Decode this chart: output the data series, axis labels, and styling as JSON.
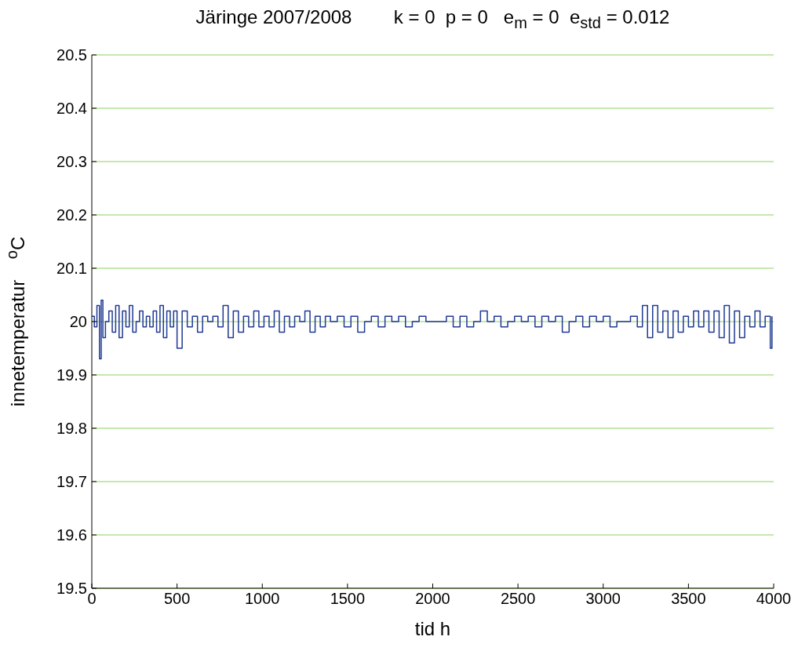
{
  "chart_data": {
    "type": "step",
    "title": "Järinge 2007/2008        k = 0  p = 0   e$_{m}$ = 0  e$_{std}$ = 0.012",
    "xlabel": "tid  h",
    "ylabel": "innetemperatur    $^{o}$C",
    "x": [
      0,
      15,
      30,
      45,
      55,
      65,
      80,
      100,
      120,
      140,
      160,
      180,
      200,
      220,
      240,
      260,
      280,
      300,
      320,
      340,
      360,
      380,
      400,
      420,
      440,
      460,
      480,
      500,
      530,
      560,
      590,
      620,
      650,
      680,
      710,
      740,
      770,
      800,
      830,
      860,
      890,
      920,
      950,
      980,
      1010,
      1040,
      1070,
      1100,
      1130,
      1160,
      1190,
      1220,
      1250,
      1280,
      1310,
      1340,
      1370,
      1400,
      1440,
      1480,
      1520,
      1560,
      1600,
      1640,
      1680,
      1720,
      1760,
      1800,
      1840,
      1880,
      1920,
      1960,
      2000,
      2040,
      2080,
      2120,
      2160,
      2200,
      2240,
      2280,
      2320,
      2360,
      2400,
      2440,
      2480,
      2520,
      2560,
      2600,
      2640,
      2680,
      2720,
      2760,
      2800,
      2840,
      2880,
      2920,
      2960,
      3000,
      3040,
      3080,
      3120,
      3160,
      3200,
      3230,
      3260,
      3290,
      3320,
      3350,
      3380,
      3410,
      3440,
      3470,
      3500,
      3530,
      3560,
      3590,
      3620,
      3650,
      3680,
      3710,
      3740,
      3770,
      3800,
      3830,
      3860,
      3890,
      3920,
      3950,
      3980,
      3990
    ],
    "series": [
      {
        "color": "#1f3a93",
        "values": [
          20.01,
          19.99,
          20.03,
          19.93,
          20.04,
          19.97,
          20.0,
          20.02,
          19.98,
          20.03,
          19.97,
          20.02,
          19.99,
          20.03,
          19.98,
          20.0,
          20.02,
          19.99,
          20.01,
          19.99,
          20.02,
          19.98,
          20.03,
          19.97,
          20.02,
          19.99,
          20.02,
          19.95,
          20.02,
          19.99,
          20.01,
          19.98,
          20.01,
          20.0,
          20.01,
          19.99,
          20.03,
          19.97,
          20.02,
          19.98,
          20.01,
          19.99,
          20.02,
          19.99,
          20.01,
          19.99,
          20.02,
          19.98,
          20.01,
          19.99,
          20.01,
          20.0,
          20.02,
          19.98,
          20.01,
          19.99,
          20.01,
          20.0,
          20.01,
          19.99,
          20.01,
          19.98,
          20.0,
          20.01,
          19.99,
          20.01,
          20.0,
          20.01,
          19.99,
          20.0,
          20.01,
          20.0,
          20.0,
          20.0,
          20.01,
          19.99,
          20.01,
          19.99,
          20.0,
          20.02,
          20.0,
          20.01,
          19.99,
          20.0,
          20.01,
          20.0,
          20.01,
          19.99,
          20.01,
          20.0,
          20.01,
          19.98,
          20.0,
          20.01,
          19.99,
          20.01,
          20.0,
          20.01,
          19.99,
          20.0,
          20.0,
          20.01,
          19.99,
          20.03,
          19.97,
          20.03,
          19.98,
          20.02,
          19.97,
          20.02,
          19.98,
          20.01,
          19.99,
          20.02,
          19.99,
          20.02,
          19.98,
          20.02,
          19.97,
          20.03,
          19.96,
          20.02,
          19.97,
          20.01,
          19.99,
          20.02,
          19.99,
          20.01,
          19.95,
          20.01
        ]
      }
    ],
    "xlim": [
      0,
      4000
    ],
    "xticks": [
      0,
      500,
      1000,
      1500,
      2000,
      2500,
      3000,
      3500,
      4000
    ],
    "ylim": [
      19.5,
      20.5
    ],
    "yticks": [
      19.5,
      19.6,
      19.7,
      19.8,
      19.9,
      20,
      20.1,
      20.2,
      20.3,
      20.4,
      20.5
    ],
    "grid": "y",
    "legend": false
  }
}
